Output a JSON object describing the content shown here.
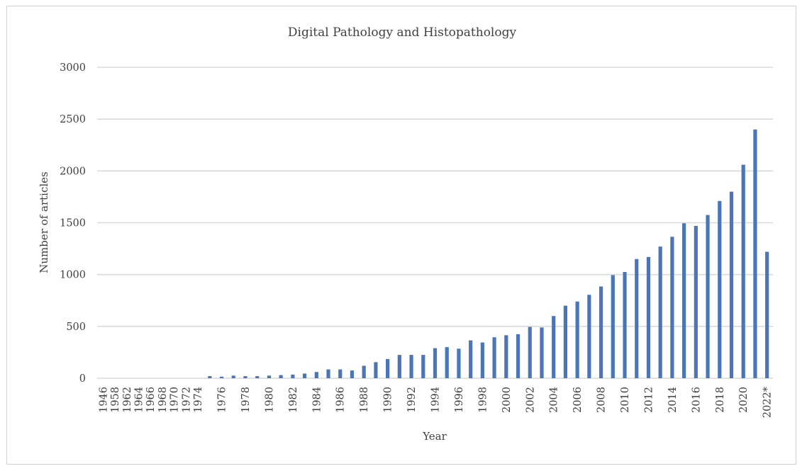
{
  "chart_data": {
    "type": "bar",
    "title": "Digital Pathology and Histopathology",
    "xlabel": "Year",
    "ylabel": "Number of articles",
    "ylim": [
      0,
      3000
    ],
    "yticks": [
      0,
      500,
      1000,
      1500,
      2000,
      2500,
      3000
    ],
    "grid": true,
    "legend": "none",
    "bar_color": "#4a76b8",
    "categories": [
      "1946",
      "1958",
      "1962",
      "1964",
      "1966",
      "1968",
      "1970",
      "1972",
      "1974",
      "1975",
      "1976",
      "1977",
      "1978",
      "1979",
      "1980",
      "1981",
      "1982",
      "1983",
      "1984",
      "1985",
      "1986",
      "1987",
      "1988",
      "1989",
      "1990",
      "1991",
      "1992",
      "1993",
      "1994",
      "1995",
      "1996",
      "1997",
      "1998",
      "1999",
      "2000",
      "2001",
      "2002",
      "2003",
      "2004",
      "2005",
      "2006",
      "2007",
      "2008",
      "2009",
      "2010",
      "2011",
      "2012",
      "2013",
      "2014",
      "2015",
      "2016",
      "2017",
      "2018",
      "2019",
      "2020",
      "2021",
      "2022*"
    ],
    "tick_labels": [
      "1946",
      "1958",
      "1962",
      "1964",
      "1966",
      "1968",
      "1970",
      "1972",
      "1974",
      "",
      "1976",
      "",
      "1978",
      "",
      "1980",
      "",
      "1982",
      "",
      "1984",
      "",
      "1986",
      "",
      "1988",
      "",
      "1990",
      "",
      "1992",
      "",
      "1994",
      "",
      "1996",
      "",
      "1998",
      "",
      "2000",
      "",
      "2002",
      "",
      "2004",
      "",
      "2006",
      "",
      "2008",
      "",
      "2010",
      "",
      "2012",
      "",
      "2014",
      "",
      "2016",
      "",
      "2018",
      "",
      "2020",
      "",
      "2022*"
    ],
    "values": [
      0,
      0,
      0,
      0,
      0,
      0,
      0,
      0,
      0,
      20,
      15,
      25,
      20,
      20,
      25,
      30,
      35,
      45,
      60,
      85,
      85,
      75,
      120,
      155,
      185,
      225,
      225,
      225,
      290,
      300,
      285,
      365,
      345,
      395,
      415,
      425,
      495,
      490,
      600,
      700,
      740,
      805,
      885,
      995,
      1025,
      1150,
      1170,
      1270,
      1365,
      1495,
      1470,
      1575,
      1710,
      1800,
      2060,
      2400,
      1220
    ]
  }
}
